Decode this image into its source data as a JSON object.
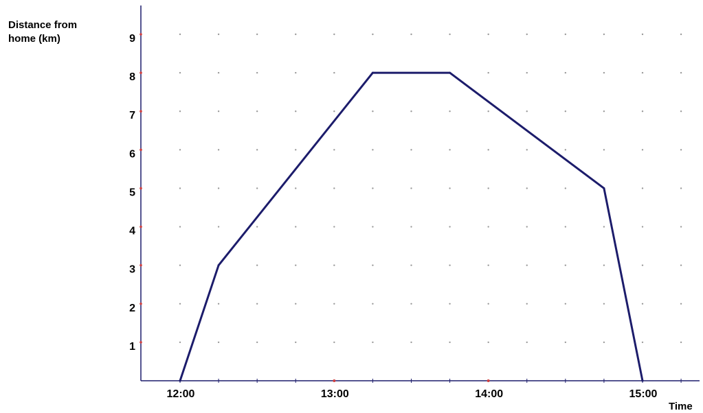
{
  "chart_data": {
    "type": "line",
    "title": "",
    "xlabel": "Time",
    "ylabel_lines": [
      "Distance from",
      "home (km)"
    ],
    "x_unit": "hours",
    "x_ticks": [
      {
        "value": 12,
        "label": "12:00"
      },
      {
        "value": 13,
        "label": "13:00"
      },
      {
        "value": 14,
        "label": "14:00"
      },
      {
        "value": 15,
        "label": "15:00"
      }
    ],
    "y_ticks": [
      1,
      2,
      3,
      4,
      5,
      6,
      7,
      8,
      9
    ],
    "xlim": [
      11.75,
      15.25
    ],
    "ylim": [
      0,
      9.5
    ],
    "grid": "dotted",
    "grid_step_x_hours": 0.25,
    "grid_step_y": 1,
    "series": [
      {
        "x": [
          "12:00",
          "12:15",
          "13:15",
          "13:45",
          "14:45",
          "15:00"
        ],
        "x_hours": [
          12.0,
          12.25,
          13.25,
          13.75,
          14.75,
          15.0
        ],
        "y": [
          0,
          3,
          8,
          8,
          5,
          0
        ]
      }
    ],
    "colors": {
      "line": "#1c1c6b",
      "axis": "#1c1c6b",
      "grid_dot": "#9a9a9a",
      "tick_dot": "#d04040"
    }
  }
}
